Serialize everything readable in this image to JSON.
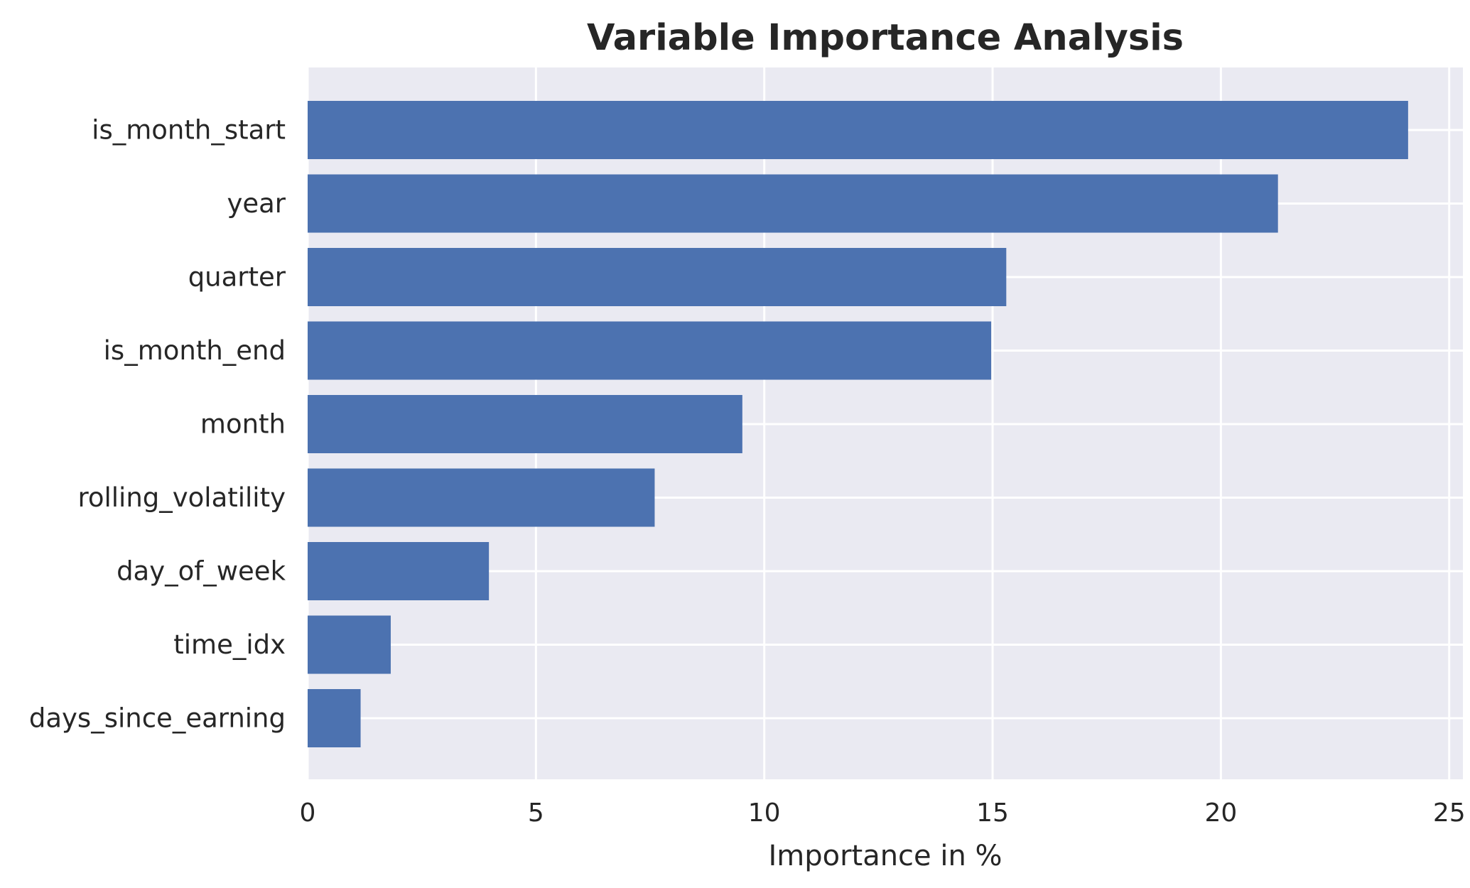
{
  "chart_data": {
    "type": "bar",
    "orientation": "horizontal",
    "title": "Variable Importance Analysis",
    "xlabel": "Importance in %",
    "ylabel": "",
    "xlim": [
      0,
      25.3
    ],
    "xticks": [
      0,
      5,
      10,
      15,
      20,
      25
    ],
    "grid": true,
    "legend": "none",
    "categories": [
      "is_month_start",
      "year",
      "quarter",
      "is_month_end",
      "month",
      "rolling_volatility",
      "day_of_week",
      "time_idx",
      "days_since_earning"
    ],
    "values": [
      24.1,
      21.25,
      15.3,
      14.97,
      9.52,
      7.6,
      3.97,
      1.82,
      1.16
    ],
    "colors": {
      "bar": "#4c72b0",
      "plot_background": "#eaeaf2",
      "grid": "#ffffff",
      "text": "#262626"
    }
  }
}
